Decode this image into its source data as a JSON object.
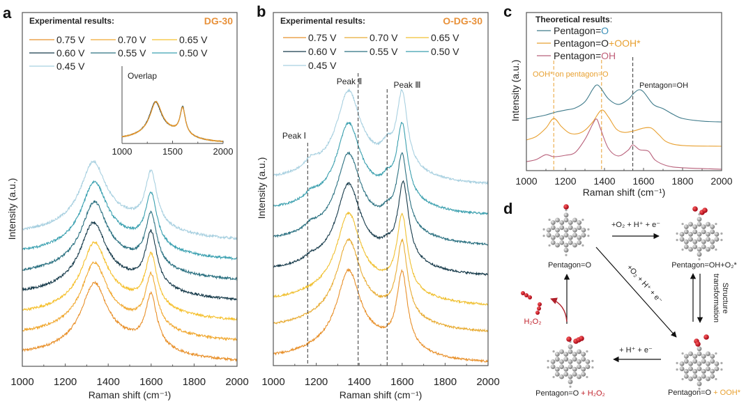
{
  "panels": {
    "a": "a",
    "b": "b",
    "c": "c",
    "d": "d"
  },
  "colors": {
    "accent_orange": "#e8913a",
    "accent_red": "#c0202a",
    "teal": "#3e7a8a",
    "pink": "#b8607a"
  },
  "chart_data": [
    {
      "id": "a",
      "type": "line",
      "legend_title": "Experimental results:",
      "sample_label": "DG-30",
      "xlabel": "Raman shift (cm⁻¹)",
      "ylabel": "Intensity (a.u.)",
      "xlim": [
        1000,
        2000
      ],
      "xticks": [
        "1000",
        "1200",
        "1400",
        "1600",
        "1800",
        "2000"
      ],
      "ylim": [
        0,
        17.5
      ],
      "legend_placement": "top-left",
      "series": [
        {
          "name": "0.75 V",
          "color": "#e8902a",
          "offset": 0.27,
          "d_band": 1335,
          "g_band": 1600,
          "d_height": 2.9,
          "g_height": 2.5
        },
        {
          "name": "0.70 V",
          "color": "#f0a830",
          "offset": 1.27,
          "d_band": 1335,
          "g_band": 1600,
          "d_height": 2.9,
          "g_height": 2.5
        },
        {
          "name": "0.65 V",
          "color": "#f5c02e",
          "offset": 2.27,
          "d_band": 1335,
          "g_band": 1600,
          "d_height": 2.9,
          "g_height": 2.5
        },
        {
          "name": "0.60 V",
          "color": "#163a4a",
          "offset": 3.27,
          "d_band": 1330,
          "g_band": 1600,
          "d_height": 2.9,
          "g_height": 2.6
        },
        {
          "name": "0.55 V",
          "color": "#2a7080",
          "offset": 4.27,
          "d_band": 1335,
          "g_band": 1600,
          "d_height": 2.9,
          "g_height": 2.5
        },
        {
          "name": "0.50 V",
          "color": "#3aa0b0",
          "offset": 5.27,
          "d_band": 1335,
          "g_band": 1600,
          "d_height": 2.9,
          "g_height": 2.5
        },
        {
          "name": "0.45 V",
          "color": "#a8d0e0",
          "offset": 6.27,
          "d_band": 1330,
          "g_band": 1600,
          "d_height": 2.9,
          "g_height": 2.6
        }
      ],
      "inset": {
        "title": "Overlap",
        "xlim": [
          1000,
          2000
        ],
        "xticks": [
          "1000",
          "1500",
          "2000"
        ]
      }
    },
    {
      "id": "b",
      "type": "line",
      "legend_title": "Experimental results:",
      "sample_label": "O-DG-30",
      "xlabel": "Raman shift (cm⁻¹)",
      "ylabel": "Intensity (a.u.)",
      "xlim": [
        1000,
        2000
      ],
      "xticks": [
        "1000",
        "1200",
        "1400",
        "1600",
        "1800",
        "2000"
      ],
      "ylim": [
        0,
        12.07
      ],
      "legend_placement": "top-left",
      "series": [
        {
          "name": "0.75 V",
          "color": "#e8902a",
          "offset": 0.1,
          "d_band": 1350,
          "g_band": 1600,
          "d_height": 2.47,
          "g_height": 2.54,
          "shoulder": 0
        },
        {
          "name": "0.70 V",
          "color": "#e8ac34",
          "offset": 1.14,
          "d_band": 1350,
          "g_band": 1600,
          "d_height": 2.47,
          "g_height": 2.54,
          "shoulder": 0
        },
        {
          "name": "0.65 V",
          "color": "#f0c030",
          "offset": 2.05,
          "d_band": 1350,
          "g_band": 1600,
          "d_height": 2.47,
          "g_height": 2.54,
          "shoulder": 0
        },
        {
          "name": "0.60 V",
          "color": "#163a4a",
          "offset": 3.07,
          "d_band": 1350,
          "g_band": 1605,
          "d_height": 2.45,
          "g_height": 2.6,
          "shoulder": 0.2
        },
        {
          "name": "0.55 V",
          "color": "#2a7080",
          "offset": 4.1,
          "d_band": 1350,
          "g_band": 1600,
          "d_height": 2.45,
          "g_height": 2.5,
          "shoulder": 0.3
        },
        {
          "name": "0.50 V",
          "color": "#3a9fae",
          "offset": 5.14,
          "d_band": 1350,
          "g_band": 1600,
          "d_height": 2.45,
          "g_height": 2.5,
          "shoulder": 0.35
        },
        {
          "name": "0.45 V",
          "color": "#a8d0e0",
          "offset": 6.19,
          "d_band": 1350,
          "g_band": 1600,
          "d_height": 2.5,
          "g_height": 2.55,
          "shoulder": 0.45
        }
      ],
      "markers": [
        {
          "x": 1160,
          "label": "Peak Ⅰ"
        },
        {
          "x": 1395,
          "label": "Peak Ⅱ"
        },
        {
          "x": 1530,
          "label": "Peak Ⅲ"
        }
      ]
    },
    {
      "id": "c",
      "type": "line",
      "legend_title": "Theoretical results",
      "legend_title_colon": ":",
      "xlabel": "Raman shift (cm⁻¹)",
      "ylabel": "Intensity (a.u.)",
      "xlim": [
        1000,
        2000
      ],
      "xticks": [
        "1000",
        "1200",
        "1400",
        "1600",
        "1800",
        "2000"
      ],
      "ylim": [
        0,
        10
      ],
      "legend_placement": "top-left",
      "series": [
        {
          "name_parts": [
            "Pentagon=",
            "O"
          ],
          "part_colors": [
            "#222222",
            "#3a8fb8"
          ],
          "color": "#3e7a8a",
          "x": [
            1000,
            1050,
            1100,
            1150,
            1200,
            1250,
            1300,
            1340,
            1360,
            1380,
            1420,
            1470,
            1520,
            1550,
            1575,
            1600,
            1650,
            1700,
            1750,
            1800,
            1900,
            2000
          ],
          "y": [
            3.26,
            3.39,
            3.52,
            3.7,
            3.83,
            3.96,
            4.36,
            5.15,
            5.42,
            5.24,
            4.54,
            4.19,
            4.49,
            4.89,
            5.11,
            4.98,
            4.19,
            3.92,
            3.57,
            3.3,
            3.13,
            3.08
          ]
        },
        {
          "name_parts": [
            "Pentagon=O",
            "+OOH*"
          ],
          "part_colors": [
            "#222222",
            "#e8a030"
          ],
          "color": "#e8a030",
          "x": [
            1000,
            1050,
            1100,
            1140,
            1180,
            1220,
            1260,
            1300,
            1340,
            1385,
            1420,
            1460,
            1500,
            1550,
            1600,
            1640,
            1680,
            1720,
            1800,
            2000
          ],
          "y": [
            1.94,
            2.16,
            2.69,
            3.3,
            2.78,
            2.38,
            2.33,
            2.56,
            3.08,
            3.83,
            3.39,
            2.64,
            2.42,
            2.51,
            2.69,
            2.69,
            2.25,
            1.81,
            1.59,
            1.54
          ]
        },
        {
          "name_parts": [
            "Pentagon=",
            "OH"
          ],
          "part_colors": [
            "#222222",
            "#c0607a"
          ],
          "color": "#b8607a",
          "x": [
            1000,
            1050,
            1100,
            1140,
            1200,
            1250,
            1300,
            1340,
            1360,
            1380,
            1420,
            1470,
            1520,
            1545,
            1580,
            1625,
            1660,
            1720,
            1800,
            2000
          ],
          "y": [
            0.57,
            0.7,
            1.01,
            0.88,
            0.97,
            1.15,
            1.98,
            2.95,
            3.26,
            2.64,
            1.41,
            0.93,
            1.28,
            1.63,
            1.32,
            1.23,
            0.66,
            0.31,
            0.18,
            0.09
          ]
        }
      ],
      "markers": [
        {
          "x": 1140,
          "color": "#e8a030"
        },
        {
          "x": 1385,
          "color": "#e8a030"
        },
        {
          "x": 1545,
          "color": "#333333"
        }
      ],
      "annotations": [
        "OOH* on pentagon=O",
        "Pentagon=OH"
      ]
    }
  ],
  "diagram": {
    "states": {
      "s1": "Pentagon=O",
      "s2": "Pentagon=OH+O₂*",
      "s3_a": "Pentagon=O",
      "s3_b": " + OOH*",
      "s4_a": "Pentagon=O",
      "s4_b": " + H₂O₂"
    },
    "arrows": {
      "s1_to_s2": "+O₂ + H⁺ + e⁻",
      "s1_to_s3": "+O₂ + H⁺ + e⁻",
      "s3_to_s4": "+ H⁺ + e⁻",
      "structure_1": "Structure",
      "structure_2": "transformation",
      "release": "H₂O₂"
    }
  }
}
